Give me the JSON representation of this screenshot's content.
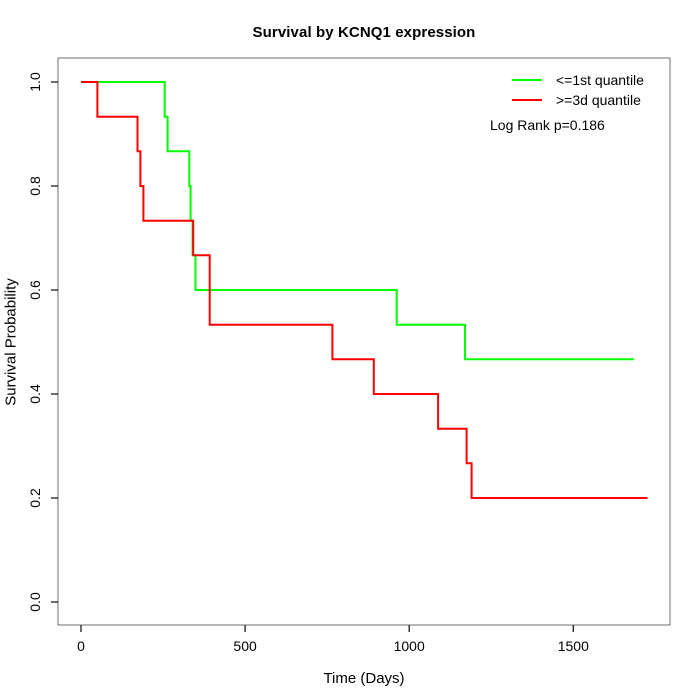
{
  "chart_data": {
    "type": "line",
    "subtype": "kaplan-meier-step-curve",
    "title": "Survival by KCNQ1 expression",
    "xlabel": "Time (Days)",
    "ylabel": "Survival Probability",
    "xlim": [
      0,
      1795
    ],
    "ylim": [
      0,
      1.04
    ],
    "grid": false,
    "legend_position": "top-right",
    "annotation": "Log Rank p=0.186",
    "xticks": [
      {
        "value": 0,
        "label": "0"
      },
      {
        "value": 500,
        "label": "500"
      },
      {
        "value": 1000,
        "label": "1000"
      },
      {
        "value": 1500,
        "label": "1500"
      }
    ],
    "yticks": [
      {
        "value": 0.0,
        "label": "0.0"
      },
      {
        "value": 0.2,
        "label": "0.2"
      },
      {
        "value": 0.4,
        "label": "0.4"
      },
      {
        "value": 0.6,
        "label": "0.6"
      },
      {
        "value": 0.8,
        "label": "0.8"
      },
      {
        "value": 1.0,
        "label": "1.0"
      }
    ],
    "series": [
      {
        "name": "<=1st quantile",
        "color": "#00ff00",
        "end_time": 1685,
        "points": [
          {
            "t": 0,
            "s": 1.0
          },
          {
            "t": 255,
            "s": 0.933
          },
          {
            "t": 264,
            "s": 0.867
          },
          {
            "t": 330,
            "s": 0.8
          },
          {
            "t": 334,
            "s": 0.733
          },
          {
            "t": 340,
            "s": 0.667
          },
          {
            "t": 349,
            "s": 0.6
          },
          {
            "t": 962,
            "s": 0.533
          },
          {
            "t": 1170,
            "s": 0.467
          }
        ]
      },
      {
        "name": ">=3d quantile",
        "color": "#ff0000",
        "end_time": 1726,
        "points": [
          {
            "t": 0,
            "s": 1.0
          },
          {
            "t": 50,
            "s": 0.933
          },
          {
            "t": 172,
            "s": 0.867
          },
          {
            "t": 181,
            "s": 0.8
          },
          {
            "t": 190,
            "s": 0.733
          },
          {
            "t": 342,
            "s": 0.667
          },
          {
            "t": 392,
            "s": 0.533
          },
          {
            "t": 766,
            "s": 0.467
          },
          {
            "t": 892,
            "s": 0.4
          },
          {
            "t": 1088,
            "s": 0.333
          },
          {
            "t": 1175,
            "s": 0.267
          },
          {
            "t": 1190,
            "s": 0.2
          }
        ]
      }
    ],
    "frame_color": "#6e6e6e",
    "tick_color": "#2b2b2b"
  }
}
